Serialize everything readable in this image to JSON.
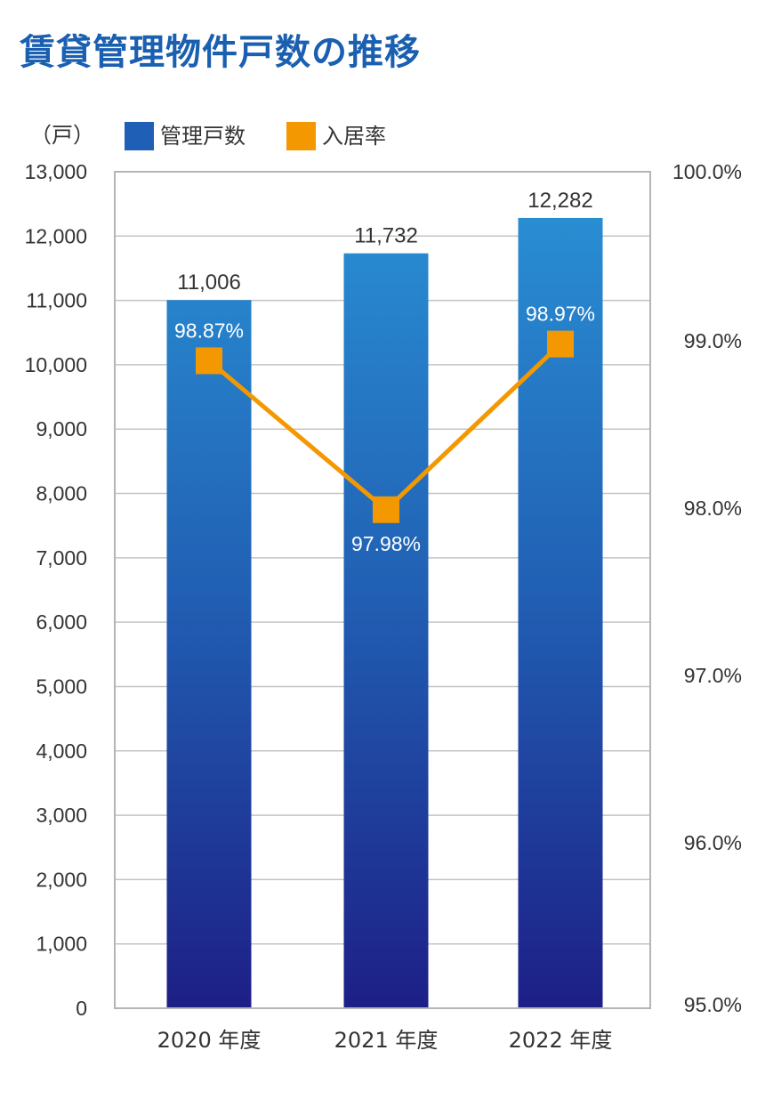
{
  "title": "賃貸管理物件戸数の推移",
  "chart_data": {
    "type": "bar+line",
    "title": "賃貸管理物件戸数の推移",
    "unit_label": "（戸）",
    "categories": [
      "2020 年度",
      "2021 年度",
      "2022 年度"
    ],
    "series": [
      {
        "name": "管理戸数",
        "type": "bar",
        "axis": "left",
        "values": [
          11006,
          11732,
          12282
        ],
        "labels": [
          "11,006",
          "11,732",
          "12,282"
        ],
        "color": "#1f5fb5"
      },
      {
        "name": "入居率",
        "type": "line",
        "axis": "right",
        "values": [
          98.87,
          97.98,
          98.97
        ],
        "labels": [
          "98.87%",
          "97.98%",
          "98.97%"
        ],
        "color": "#f39800"
      }
    ],
    "left_axis": {
      "ylim": [
        0,
        13000
      ],
      "ticks": [
        "0",
        "1,000",
        "2,000",
        "3,000",
        "4,000",
        "5,000",
        "6,000",
        "7,000",
        "8,000",
        "9,000",
        "10,000",
        "11,000",
        "12,000",
        "13,000"
      ]
    },
    "right_axis": {
      "ylim": [
        95.0,
        100.0
      ],
      "ticks": [
        "95.0%",
        "96.0%",
        "97.0%",
        "98.0%",
        "99.0%",
        "100.0%"
      ]
    },
    "grid": true,
    "legend": "top-left"
  }
}
